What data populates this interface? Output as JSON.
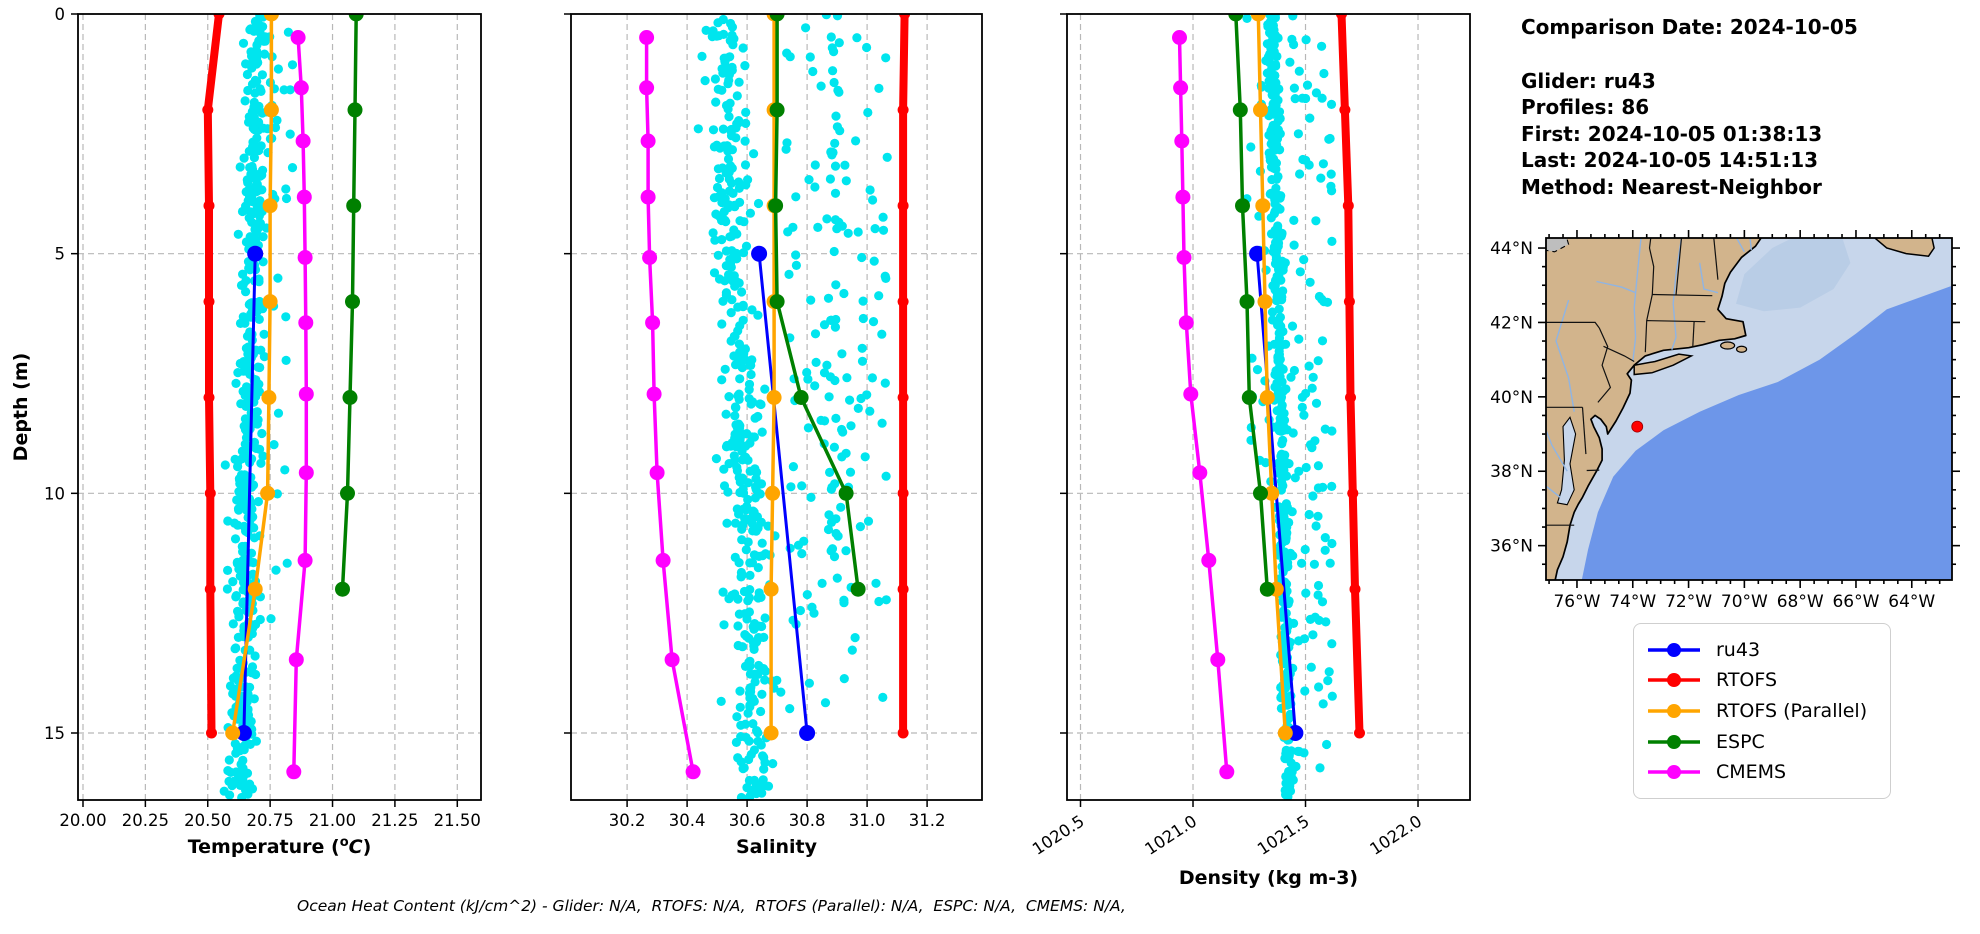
{
  "info": {
    "comparison_date": "Comparison Date: 2024-10-05",
    "glider": "Glider: ru43",
    "profiles": "Profiles: 86",
    "first": "First: 2024-10-05 01:38:13",
    "last": "Last: 2024-10-05 14:51:13",
    "method": "Method: Nearest-Neighbor"
  },
  "footer": "Ocean Heat Content (kJ/cm^2) - Glider: N/A,  RTOFS: N/A,  RTOFS (Parallel): N/A,  ESPC: N/A,  CMEMS: N/A,",
  "legend": {
    "entries": [
      {
        "label": "ru43",
        "color": "#0000FF"
      },
      {
        "label": "RTOFS",
        "color": "#FF0000"
      },
      {
        "label": "RTOFS (Parallel)",
        "color": "#FFA500"
      },
      {
        "label": "ESPC",
        "color": "#008000"
      },
      {
        "label": "CMEMS",
        "color": "#FF00FF"
      }
    ]
  },
  "colors": {
    "glider_scatter": "#00E5EE",
    "ru43": "#0000FF",
    "rtofs": "#FF0000",
    "rtofs_parallel": "#FFA500",
    "espc": "#008000",
    "cmems": "#FF00FF",
    "land": "#D2B48C",
    "shelf": "#C7D6EB",
    "mid_ocean": "#B9CDE6",
    "deep_ocean": "#6D96E9"
  },
  "depth_axis": {
    "label": "Depth (m)",
    "ticks": [
      0,
      5,
      10,
      15
    ],
    "lim": [
      0,
      16.4
    ]
  },
  "chart_data": [
    {
      "type": "scatter",
      "title": "temperature-profile",
      "xlabel_parts": {
        "prefix": "Temperature (",
        "sup": "o",
        "italic": "C",
        "suffix": ")"
      },
      "xlabel": "Temperature (°C)",
      "ylabel": "Depth (m)",
      "xlim": [
        19.98,
        21.595
      ],
      "ylim": [
        0,
        16.4
      ],
      "xticks": [
        20.0,
        20.25,
        20.5,
        20.75,
        21.0,
        21.25,
        21.5
      ],
      "xtick_labels": [
        "20.00",
        "20.25",
        "20.50",
        "20.75",
        "21.00",
        "21.25",
        "21.50"
      ],
      "rotate_xtick_labels": 0,
      "glider_scatter": {
        "name": "glider-raw-points",
        "color": "#00E5EE",
        "clusters": [
          {
            "kind": "gauss",
            "cx": 20.705,
            "driftPerM": -0.0042,
            "sd": 0.026,
            "n": 430,
            "dmin": 0,
            "dmax": 16.35
          },
          {
            "kind": "gauss",
            "cx": 20.615,
            "driftPerM": 0,
            "sd": 0.025,
            "n": 45,
            "dmin": 8.5,
            "dmax": 16.3
          },
          {
            "kind": "uniform",
            "x0": 20.75,
            "x1": 20.84,
            "n": 25,
            "dmin": 0,
            "dmax": 12
          }
        ]
      },
      "series": [
        {
          "name": "ru43",
          "color": "#0000FF",
          "points": [
            [
              20.69,
              5
            ],
            [
              20.645,
              15
            ]
          ]
        },
        {
          "name": "RTOFS",
          "color": "#FF0000",
          "points": [
            [
              20.545,
              0
            ],
            [
              20.5,
              2
            ],
            [
              20.505,
              4
            ],
            [
              20.505,
              6
            ],
            [
              20.505,
              8
            ],
            [
              20.51,
              10
            ],
            [
              20.51,
              12
            ],
            [
              20.515,
              15
            ]
          ]
        },
        {
          "name": "RTOFS (Parallel)",
          "color": "#FFA500",
          "points": [
            [
              20.755,
              0
            ],
            [
              20.755,
              2
            ],
            [
              20.75,
              4
            ],
            [
              20.75,
              6
            ],
            [
              20.745,
              8
            ],
            [
              20.74,
              10
            ],
            [
              20.69,
              12
            ],
            [
              20.6,
              15
            ]
          ]
        },
        {
          "name": "ESPC",
          "color": "#008000",
          "points": [
            [
              21.095,
              0
            ],
            [
              21.09,
              2
            ],
            [
              21.085,
              4
            ],
            [
              21.08,
              6
            ],
            [
              21.07,
              8
            ],
            [
              21.06,
              10
            ],
            [
              21.04,
              12
            ]
          ]
        },
        {
          "name": "CMEMS",
          "color": "#FF00FF",
          "points": [
            [
              20.862,
              0.49
            ],
            [
              20.875,
              1.54
            ],
            [
              20.882,
              2.65
            ],
            [
              20.887,
              3.82
            ],
            [
              20.89,
              5.08
            ],
            [
              20.893,
              6.44
            ],
            [
              20.895,
              7.93
            ],
            [
              20.895,
              9.57
            ],
            [
              20.89,
              11.4
            ],
            [
              20.855,
              13.47
            ],
            [
              20.845,
              15.81
            ]
          ]
        }
      ]
    },
    {
      "type": "scatter",
      "title": "salinity-profile",
      "xlabel": "Salinity",
      "xlim": [
        30.013,
        31.383
      ],
      "ylim": [
        0,
        16.4
      ],
      "xticks": [
        30.2,
        30.4,
        30.6,
        30.8,
        31.0,
        31.2
      ],
      "xtick_labels": [
        "30.2",
        "30.4",
        "30.6",
        "30.8",
        "31.0",
        "31.2"
      ],
      "rotate_xtick_labels": 0,
      "glider_scatter": {
        "name": "glider-raw-points",
        "color": "#00E5EE",
        "clusters": [
          {
            "kind": "gauss",
            "cx": 30.52,
            "driftPerM": 0.007,
            "sd": 0.035,
            "n": 400,
            "dmin": 0,
            "dmax": 16.35
          },
          {
            "kind": "uniform",
            "x0": 30.73,
            "x1": 31.07,
            "n": 120,
            "dmin": 0,
            "dmax": 14.5
          },
          {
            "kind": "gauss",
            "cx": 30.9,
            "driftPerM": 0,
            "sd": 0.018,
            "n": 45,
            "dmin": 0,
            "dmax": 12
          }
        ]
      },
      "series": [
        {
          "name": "ru43",
          "color": "#0000FF",
          "points": [
            [
              30.64,
              5
            ],
            [
              30.8,
              15
            ]
          ]
        },
        {
          "name": "RTOFS",
          "color": "#FF0000",
          "points": [
            [
              31.125,
              0
            ],
            [
              31.12,
              2
            ],
            [
              31.12,
              4
            ],
            [
              31.12,
              6
            ],
            [
              31.12,
              8
            ],
            [
              31.12,
              10
            ],
            [
              31.12,
              12
            ],
            [
              31.12,
              15
            ]
          ]
        },
        {
          "name": "RTOFS (Parallel)",
          "color": "#FFA500",
          "points": [
            [
              30.69,
              0
            ],
            [
              30.69,
              2
            ],
            [
              30.69,
              4
            ],
            [
              30.69,
              6
            ],
            [
              30.69,
              8
            ],
            [
              30.685,
              10
            ],
            [
              30.68,
              12
            ],
            [
              30.68,
              15
            ]
          ]
        },
        {
          "name": "ESPC",
          "color": "#008000",
          "points": [
            [
              30.7,
              0
            ],
            [
              30.7,
              2
            ],
            [
              30.695,
              4
            ],
            [
              30.7,
              6
            ],
            [
              30.78,
              8
            ],
            [
              30.93,
              10
            ],
            [
              30.97,
              12
            ]
          ]
        },
        {
          "name": "CMEMS",
          "color": "#FF00FF",
          "points": [
            [
              30.265,
              0.49
            ],
            [
              30.265,
              1.54
            ],
            [
              30.27,
              2.65
            ],
            [
              30.27,
              3.82
            ],
            [
              30.275,
              5.08
            ],
            [
              30.285,
              6.44
            ],
            [
              30.29,
              7.93
            ],
            [
              30.3,
              9.57
            ],
            [
              30.32,
              11.4
            ],
            [
              30.35,
              13.47
            ],
            [
              30.42,
              15.81
            ]
          ]
        }
      ]
    },
    {
      "type": "scatter",
      "title": "density-profile",
      "xlabel": "Density (kg m-3)",
      "xlim": [
        1020.44,
        1022.231
      ],
      "ylim": [
        0,
        16.4
      ],
      "xticks": [
        1020.5,
        1021.0,
        1021.5,
        1022.0
      ],
      "xtick_labels": [
        "1020.5",
        "1021.0",
        "1021.5",
        "1022.0"
      ],
      "rotate_xtick_labels": 33,
      "glider_scatter": {
        "name": "glider-raw-points",
        "color": "#00E5EE",
        "clusters": [
          {
            "kind": "gauss",
            "cx": 1021.352,
            "driftPerM": 0.0045,
            "sd": 0.012,
            "n": 400,
            "dmin": 0,
            "dmax": 16.35
          },
          {
            "kind": "uniform",
            "x0": 1021.43,
            "x1": 1021.62,
            "n": 110,
            "dmin": 0,
            "dmax": 16
          },
          {
            "kind": "gauss",
            "cx": 1021.3,
            "driftPerM": 0,
            "sd": 0.03,
            "n": 30,
            "dmin": 0,
            "dmax": 10
          }
        ]
      },
      "series": [
        {
          "name": "ru43",
          "color": "#0000FF",
          "points": [
            [
              1021.285,
              5
            ],
            [
              1021.455,
              15
            ]
          ]
        },
        {
          "name": "RTOFS",
          "color": "#FF0000",
          "points": [
            [
              1021.66,
              0
            ],
            [
              1021.675,
              2
            ],
            [
              1021.69,
              4
            ],
            [
              1021.695,
              6
            ],
            [
              1021.7,
              8
            ],
            [
              1021.71,
              10
            ],
            [
              1021.72,
              12
            ],
            [
              1021.74,
              15
            ]
          ]
        },
        {
          "name": "RTOFS (Parallel)",
          "color": "#FFA500",
          "points": [
            [
              1021.29,
              0
            ],
            [
              1021.3,
              2
            ],
            [
              1021.31,
              4
            ],
            [
              1021.32,
              6
            ],
            [
              1021.33,
              8
            ],
            [
              1021.35,
              10
            ],
            [
              1021.37,
              12
            ],
            [
              1021.41,
              15
            ]
          ]
        },
        {
          "name": "ESPC",
          "color": "#008000",
          "points": [
            [
              1021.19,
              0
            ],
            [
              1021.21,
              2
            ],
            [
              1021.22,
              4
            ],
            [
              1021.24,
              6
            ],
            [
              1021.25,
              8
            ],
            [
              1021.3,
              10
            ],
            [
              1021.33,
              12
            ]
          ]
        },
        {
          "name": "CMEMS",
          "color": "#FF00FF",
          "points": [
            [
              1020.94,
              0.49
            ],
            [
              1020.945,
              1.54
            ],
            [
              1020.95,
              2.65
            ],
            [
              1020.955,
              3.82
            ],
            [
              1020.96,
              5.08
            ],
            [
              1020.97,
              6.44
            ],
            [
              1020.99,
              7.93
            ],
            [
              1021.03,
              9.57
            ],
            [
              1021.07,
              11.4
            ],
            [
              1021.11,
              13.47
            ],
            [
              1021.15,
              15.81
            ]
          ]
        }
      ]
    },
    {
      "type": "map",
      "title": "glider-location-map",
      "lon_tick_labels": [
        "76°W",
        "74°W",
        "72°W",
        "70°W",
        "68°W",
        "66°W",
        "64°W"
      ],
      "lat_tick_labels": [
        "44°N",
        "42°N",
        "40°N",
        "38°N",
        "36°N"
      ],
      "marker": {
        "lon_w": 73.84,
        "lat_n": 39.2,
        "color": "#FF0000"
      }
    }
  ]
}
